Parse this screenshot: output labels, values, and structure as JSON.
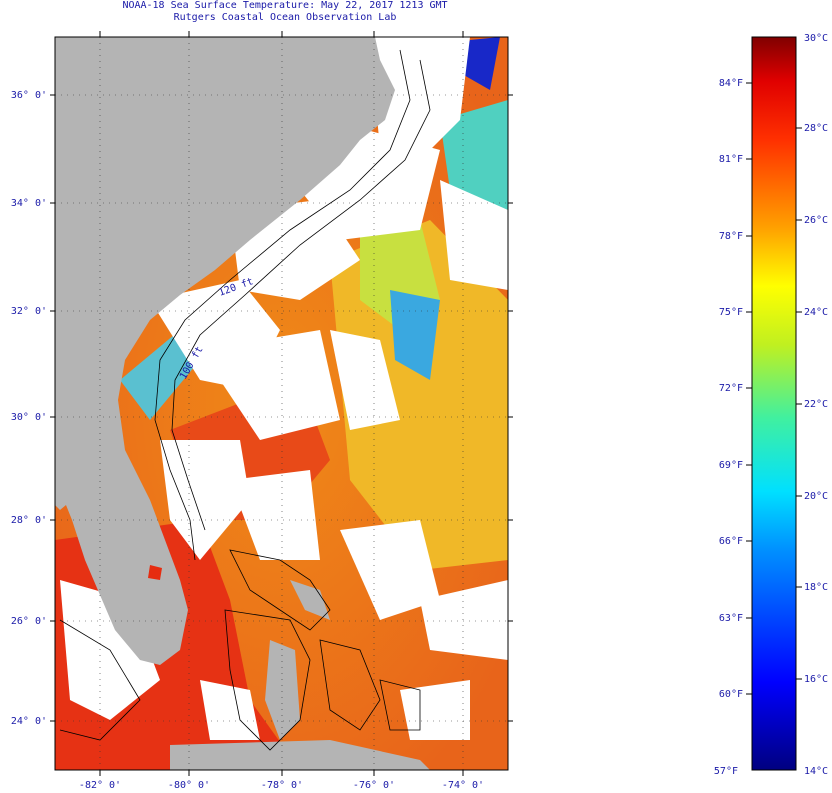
{
  "title_line1": "NOAA-18 Sea Surface Temperature:  May 22, 2017 1213 GMT",
  "title_line2": "Rutgers Coastal Ocean Observation Lab",
  "lat_labels": [
    "36° 0'",
    "34° 0'",
    "32° 0'",
    "30° 0'",
    "28° 0'",
    "26° 0'",
    "24° 0'"
  ],
  "lon_labels": [
    "-82° 0'",
    "-80° 0'",
    "-78° 0'",
    "-76° 0'",
    "-74° 0'"
  ],
  "contour_labels": [
    "120 ft",
    "100 ft"
  ],
  "colorbar": {
    "fahrenheit": [
      "84°F",
      "81°F",
      "78°F",
      "75°F",
      "72°F",
      "69°F",
      "66°F",
      "63°F",
      "60°F",
      "57°F"
    ],
    "celsius": [
      "30°C",
      "28°C",
      "26°C",
      "24°C",
      "22°C",
      "20°C",
      "18°C",
      "16°C",
      "14°C"
    ]
  },
  "colors": {
    "land": "#b4b4b4",
    "cloud": "#ffffff",
    "text": "#1a1aa8",
    "warm": "#e62c10",
    "orange": "#f07818",
    "yellow": "#f0d020",
    "cyan": "#40d8e0",
    "blue": "#1020d0"
  }
}
